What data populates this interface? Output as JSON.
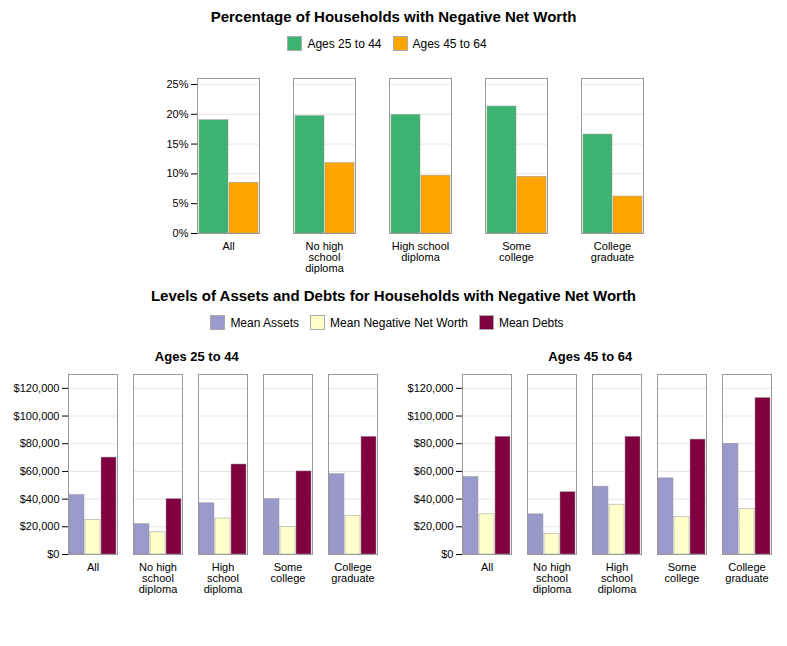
{
  "chart_data": [
    {
      "type": "bar",
      "title": "Percentage of Households with Negative Net Worth",
      "categories": [
        "All",
        "No high\nschool\ndiploma",
        "High school\ndiploma",
        "Some\ncollege",
        "College\ngraduate"
      ],
      "series": [
        {
          "name": "Ages 25 to 44",
          "color": "#3CB371",
          "values": [
            0.19,
            0.197,
            0.199,
            0.213,
            0.166
          ]
        },
        {
          "name": "Ages 45 to 64",
          "color": "#FFA500",
          "values": [
            0.085,
            0.118,
            0.097,
            0.095,
            0.062
          ]
        }
      ],
      "ylim": [
        0,
        0.26
      ],
      "yticks": [
        {
          "value": 0.0,
          "label": "0%"
        },
        {
          "value": 0.05,
          "label": "5%"
        },
        {
          "value": 0.1,
          "label": "10%"
        },
        {
          "value": 0.15,
          "label": "15%"
        },
        {
          "value": 0.2,
          "label": "20%"
        },
        {
          "value": 0.25,
          "label": "25%"
        }
      ],
      "grid": true,
      "legend": "top"
    },
    {
      "type": "bar",
      "title": "Levels of Assets and Debts for Households with Negative Net Worth",
      "subtitle": "Ages 25 to 44",
      "categories": [
        "All",
        "No high\nschool\ndiploma",
        "High\nschool\ndiploma",
        "Some\ncollege",
        "College\ngraduate"
      ],
      "series": [
        {
          "name": "Mean Assets",
          "color": "#9999CC",
          "values": [
            43000,
            22000,
            37000,
            40000,
            58000
          ]
        },
        {
          "name": "Mean Negative Net Worth",
          "color": "#FFFFCC",
          "values": [
            25000,
            16000,
            26000,
            20000,
            28000
          ]
        },
        {
          "name": "Mean Debts",
          "color": "#800040",
          "values": [
            70000,
            40000,
            65000,
            60000,
            85000
          ]
        }
      ],
      "ylim": [
        0,
        130000
      ],
      "yticks": [
        {
          "value": 0,
          "label": "$0"
        },
        {
          "value": 20000,
          "label": "$20,000"
        },
        {
          "value": 40000,
          "label": "$40,000"
        },
        {
          "value": 60000,
          "label": "$60,000"
        },
        {
          "value": 80000,
          "label": "$80,000"
        },
        {
          "value": 100000,
          "label": "$100,000"
        },
        {
          "value": 120000,
          "label": "$120,000"
        }
      ],
      "grid": true,
      "legend": "top"
    },
    {
      "type": "bar",
      "subtitle": "Ages 45 to 64",
      "categories": [
        "All",
        "No high\nschool\ndiploma",
        "High\nschool\ndiploma",
        "Some\ncollege",
        "College\ngraduate"
      ],
      "series": [
        {
          "name": "Mean Assets",
          "color": "#9999CC",
          "values": [
            56000,
            29000,
            49000,
            55000,
            80000
          ]
        },
        {
          "name": "Mean Negative Net Worth",
          "color": "#FFFFCC",
          "values": [
            29000,
            15000,
            36000,
            27000,
            33000
          ]
        },
        {
          "name": "Mean Debts",
          "color": "#800040",
          "values": [
            85000,
            45000,
            85000,
            83000,
            113000
          ]
        }
      ],
      "ylim": [
        0,
        130000
      ],
      "yticks": [
        {
          "value": 0,
          "label": "$0"
        },
        {
          "value": 20000,
          "label": "$20,000"
        },
        {
          "value": 40000,
          "label": "$40,000"
        },
        {
          "value": 60000,
          "label": "$60,000"
        },
        {
          "value": 80000,
          "label": "$80,000"
        },
        {
          "value": 100000,
          "label": "$100,000"
        },
        {
          "value": 120000,
          "label": "$120,000"
        }
      ],
      "grid": true
    }
  ]
}
